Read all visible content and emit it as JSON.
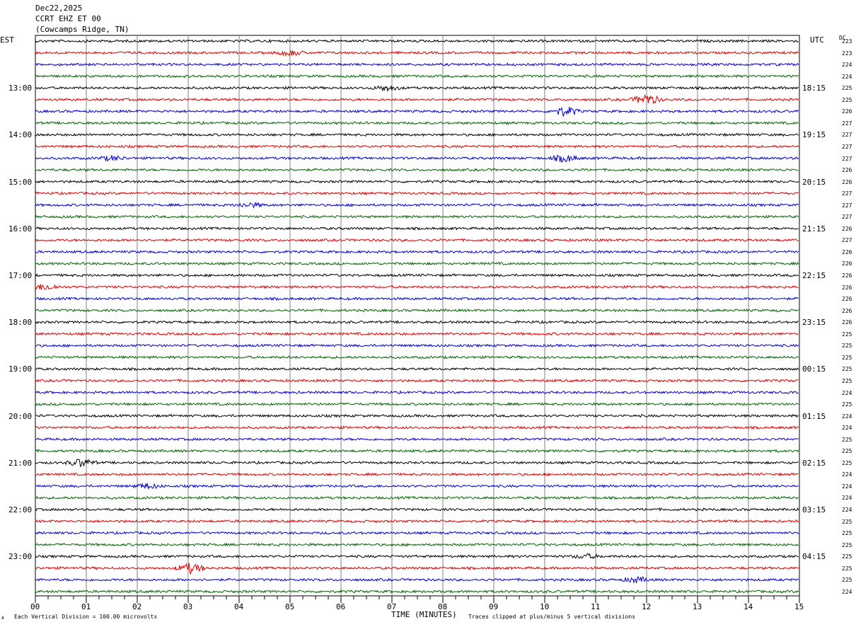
{
  "header": {
    "date": "Dec22,2025",
    "station": "CCRT EHZ ET 00",
    "location": "(Cowcamps Ridge, TN)"
  },
  "left_tz": "EST",
  "right_tz": "UTC",
  "dc_label": "DC",
  "footer": {
    "xlabel": "TIME (MINUTES)",
    "scale_note": "Each Vertical Division =  100.00 microvolts",
    "clip_note": "Traces clipped at plus/minus 5 vertical divisions",
    "corner_mark": "A"
  },
  "colors": {
    "trace_cycle": [
      "#000000",
      "#e00000",
      "#0000d0",
      "#006400"
    ],
    "grid": "#808080"
  },
  "chart_data": {
    "type": "line",
    "title": "CCRT EHZ ET 00",
    "xlabel": "TIME (MINUTES)",
    "xlim": [
      0,
      15
    ],
    "x_ticks": [
      "00",
      "01",
      "02",
      "03",
      "04",
      "05",
      "06",
      "07",
      "08",
      "09",
      "10",
      "11",
      "12",
      "13",
      "14",
      "15"
    ],
    "row_count": 48,
    "minutes_per_row": 15,
    "left_time_labels": [
      {
        "row": 4,
        "label": "13:00"
      },
      {
        "row": 8,
        "label": "14:00"
      },
      {
        "row": 12,
        "label": "15:00"
      },
      {
        "row": 16,
        "label": "16:00"
      },
      {
        "row": 20,
        "label": "17:00"
      },
      {
        "row": 24,
        "label": "18:00"
      },
      {
        "row": 28,
        "label": "19:00"
      },
      {
        "row": 32,
        "label": "20:00"
      },
      {
        "row": 36,
        "label": "21:00"
      },
      {
        "row": 40,
        "label": "22:00"
      },
      {
        "row": 44,
        "label": "23:00"
      }
    ],
    "right_time_labels": [
      {
        "row": 4,
        "label": "18:15"
      },
      {
        "row": 8,
        "label": "19:15"
      },
      {
        "row": 12,
        "label": "20:15"
      },
      {
        "row": 16,
        "label": "21:15"
      },
      {
        "row": 20,
        "label": "22:15"
      },
      {
        "row": 24,
        "label": "23:15"
      },
      {
        "row": 28,
        "label": "00:15"
      },
      {
        "row": 32,
        "label": "01:15"
      },
      {
        "row": 36,
        "label": "02:15"
      },
      {
        "row": 40,
        "label": "03:15"
      },
      {
        "row": 44,
        "label": "04:15"
      }
    ],
    "dc_offsets": [
      "223",
      "223",
      "224",
      "224",
      "225",
      "225",
      "226",
      "227",
      "227",
      "227",
      "227",
      "226",
      "226",
      "227",
      "227",
      "227",
      "226",
      "227",
      "226",
      "226",
      "226",
      "226",
      "226",
      "226",
      "226",
      "225",
      "225",
      "225",
      "225",
      "225",
      "224",
      "225",
      "224",
      "224",
      "225",
      "225",
      "225",
      "224",
      "224",
      "224",
      "224",
      "225",
      "225",
      "225",
      "225",
      "225",
      "225",
      "224"
    ],
    "events": [
      {
        "row": 1,
        "minute": 5.0,
        "amp": 1.5
      },
      {
        "row": 4,
        "minute": 6.9,
        "amp": 1.6
      },
      {
        "row": 5,
        "minute": 12.0,
        "amp": 3.2
      },
      {
        "row": 6,
        "minute": 10.4,
        "amp": 2.8
      },
      {
        "row": 10,
        "minute": 10.4,
        "amp": 2.2
      },
      {
        "row": 10,
        "minute": 1.5,
        "amp": 1.3
      },
      {
        "row": 14,
        "minute": 4.2,
        "amp": 1.4
      },
      {
        "row": 21,
        "minute": 0.2,
        "amp": 1.8
      },
      {
        "row": 36,
        "minute": 0.9,
        "amp": 2.3
      },
      {
        "row": 38,
        "minute": 2.2,
        "amp": 1.5
      },
      {
        "row": 45,
        "minute": 3.05,
        "amp": 3.0
      },
      {
        "row": 46,
        "minute": 11.8,
        "amp": 1.6
      },
      {
        "row": 44,
        "minute": 10.8,
        "amp": 1.3
      }
    ]
  }
}
